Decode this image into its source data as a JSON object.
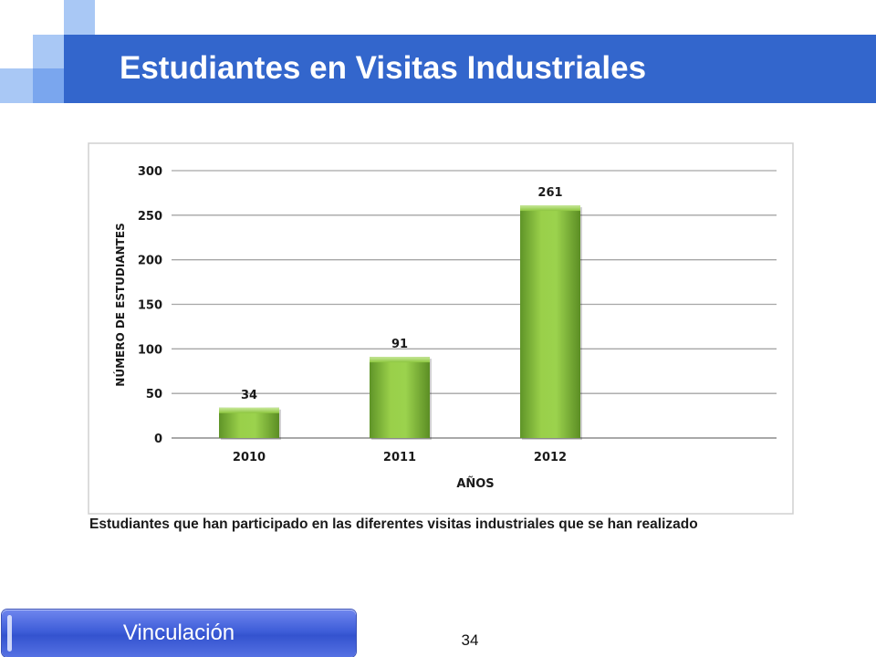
{
  "slide": {
    "title": "Estudiantes en Visitas Industriales",
    "caption": "Estudiantes que han participado en las diferentes visitas industriales que se han realizado",
    "nav_label": "Vinculación",
    "page_number": "34"
  },
  "colors": {
    "title_bar": "#3366cc",
    "bar_fill": "#8dc63f",
    "square_light": "#a9c8f5",
    "square_mid": "#7aa6ee"
  },
  "chart_data": {
    "type": "bar",
    "categories": [
      "2010",
      "2011",
      "2012"
    ],
    "values": [
      34,
      91,
      261
    ],
    "data_labels": [
      "34",
      "91",
      "261"
    ],
    "title": "",
    "xlabel": "AÑOS",
    "ylabel": "NÚMERO DE ESTUDIANTES",
    "ylim": [
      0,
      300
    ],
    "yticks": [
      0,
      50,
      100,
      150,
      200,
      250,
      300
    ],
    "ytick_labels": [
      "0",
      "50",
      "100",
      "150",
      "200",
      "250",
      "300"
    ],
    "grid": true,
    "legend": "none"
  }
}
